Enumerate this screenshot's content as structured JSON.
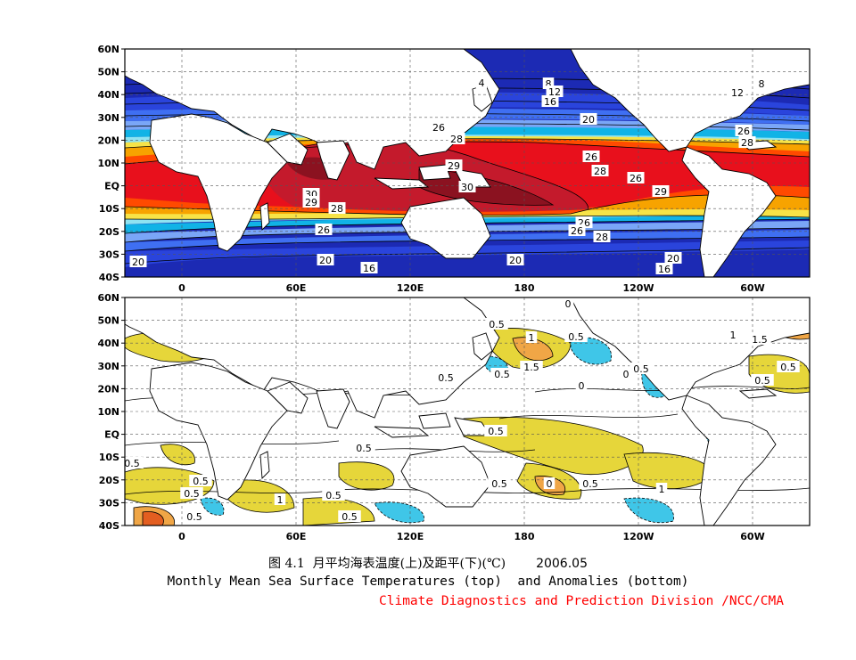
{
  "axes": {
    "lat_labels": [
      "60N",
      "50N",
      "40N",
      "30N",
      "20N",
      "10N",
      "EQ",
      "10S",
      "20S",
      "30S",
      "40S"
    ],
    "lon_labels": [
      "0",
      "60E",
      "120E",
      "180",
      "120W",
      "60W"
    ]
  },
  "top_panel": {
    "contour_labels": [
      "4",
      "8",
      "12",
      "16",
      "12",
      "8",
      "20",
      "26",
      "28",
      "26",
      "29",
      "28",
      "30",
      "28",
      "26",
      "30",
      "29",
      "28",
      "26",
      "29",
      "26",
      "26",
      "28",
      "26",
      "20",
      "20",
      "16",
      "20",
      "20",
      "16"
    ]
  },
  "bottom_panel": {
    "contour_labels": [
      "0",
      "0.5",
      "1",
      "0.5",
      "1.5",
      "1",
      "1.5",
      "0.5",
      "0.5",
      "0.5",
      "0",
      "0.5",
      "0",
      "0.5",
      "0.5",
      "0.5",
      "0.5",
      "0.5",
      "0.5",
      "1",
      "0.5",
      "0.5",
      "0.5",
      "0",
      "0.5",
      "1",
      "0.5"
    ]
  },
  "caption": {
    "title_cn": "图 4.1  月平均海表温度(上)及距平(下)(℃)",
    "date": "2006.05",
    "title_en": "Monthly Mean Sea Surface Temperatures (top)  and Anomalies (bottom)",
    "credit": "Climate Diagnostics and Prediction Division /NCC/CMA"
  },
  "colors": {
    "sst_bands": [
      "#1c2ab4",
      "#2a44dc",
      "#3f6ff2",
      "#7aa6f7",
      "#11b3e6",
      "#8fe3f1",
      "#f7e347",
      "#f7a300",
      "#ff4a00",
      "#e8101c",
      "#c41a2c",
      "#8b1220"
    ],
    "anom_positive": [
      "#e6d63a",
      "#f0a646",
      "#e35e20",
      "#c4102a"
    ],
    "anom_negative": [
      "#3fc6e8"
    ],
    "credit": "#ff0000"
  }
}
